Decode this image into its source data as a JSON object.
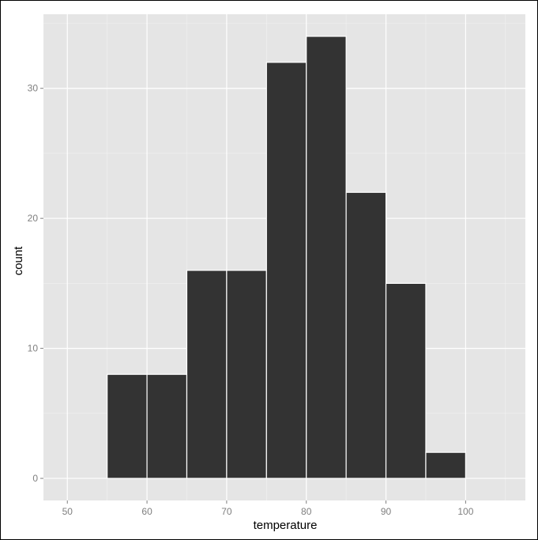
{
  "chart_data": {
    "type": "bar",
    "style": "histogram",
    "xlabel": "temperature",
    "ylabel": "count",
    "xlim": [
      47,
      107.5
    ],
    "ylim": [
      -1.7,
      35.7
    ],
    "x_ticks": [
      50,
      60,
      70,
      80,
      90,
      100
    ],
    "y_ticks": [
      0,
      10,
      20,
      30
    ],
    "bin_width": 5,
    "bins": [
      {
        "start": 55,
        "end": 60,
        "count": 8
      },
      {
        "start": 60,
        "end": 65,
        "count": 8
      },
      {
        "start": 65,
        "end": 70,
        "count": 16
      },
      {
        "start": 70,
        "end": 75,
        "count": 16
      },
      {
        "start": 75,
        "end": 80,
        "count": 32
      },
      {
        "start": 80,
        "end": 85,
        "count": 34
      },
      {
        "start": 85,
        "end": 90,
        "count": 22
      },
      {
        "start": 90,
        "end": 95,
        "count": 15
      },
      {
        "start": 95,
        "end": 100,
        "count": 2
      }
    ],
    "grid": true,
    "legend": "none",
    "colors": {
      "panel_background": "#e5e5e5",
      "grid_major": "#ffffff",
      "grid_minor": "#f2f2f2",
      "bar_fill": "#333333",
      "bar_outline": "#ffffff"
    }
  }
}
